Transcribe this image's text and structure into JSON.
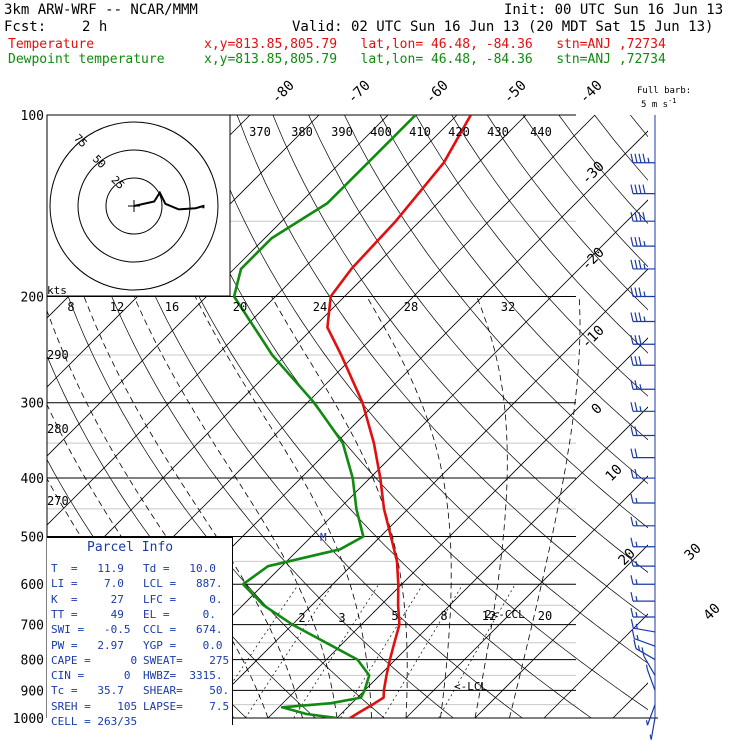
{
  "header": {
    "model": "3km ARW-WRF -- NCAR/MMM",
    "init": "Init: 00 UTC Sun 16 Jun 13",
    "fcst_label": "Fcst:",
    "fcst_value": "2 h",
    "valid": "Valid: 02 UTC Sun 16 Jun 13 (20 MDT Sat 15 Jun 13)",
    "temp_label": "Temperature",
    "dew_label": "Dewpoint temperature",
    "location": "x,y=813.85,805.79   lat,lon= 46.48, -84.36   stn=ANJ ,72734"
  },
  "wind_legend": {
    "line1": "Full barb:",
    "line2": "5 m s"
  },
  "hodograph": {
    "units": "kts",
    "ring_labels": [
      "25",
      "50",
      "75"
    ],
    "trace_kts": [
      [
        0,
        0
      ],
      [
        18,
        4
      ],
      [
        23,
        12
      ],
      [
        28,
        2
      ],
      [
        40,
        -3
      ],
      [
        55,
        -2
      ],
      [
        62,
        0
      ],
      [
        62,
        -2
      ]
    ]
  },
  "parcel_info": {
    "title": "Parcel Info",
    "left": [
      [
        "T  =",
        "11.9"
      ],
      [
        "LI =",
        "7.0"
      ],
      [
        "K  =",
        "27"
      ],
      [
        "TT =",
        "49"
      ],
      [
        "SWI =",
        "-0.5"
      ],
      [
        "PW =",
        "2.97"
      ],
      [
        "CAPE =",
        "0"
      ],
      [
        "CIN =",
        "0"
      ],
      [
        "Tc =",
        "35.7"
      ],
      [
        "SREH =",
        "105"
      ],
      [
        "CELL =",
        "263/35"
      ]
    ],
    "right": [
      [
        "Td =",
        "10.0"
      ],
      [
        "LCL =",
        "887."
      ],
      [
        "LFC =",
        "0."
      ],
      [
        "EL =",
        "0."
      ],
      [
        "CCL =",
        "674."
      ],
      [
        "YGP =",
        "0.0"
      ],
      [
        "SWEAT=",
        "275"
      ],
      [
        "HWBZ=",
        "3315."
      ],
      [
        "SHEAR=",
        "50."
      ],
      [
        "LAPSE=",
        "7.5"
      ]
    ]
  },
  "annotations": {
    "ccl": "CCL",
    "lcl": "LCL",
    "melting": "M"
  },
  "chart_data": {
    "type": "line",
    "ylabel": "",
    "xlabel": "",
    "y_scale": "log-pressure (hPa)",
    "y_ticks": [
      100,
      200,
      300,
      400,
      500,
      600,
      700,
      800,
      900,
      1000
    ],
    "y_range": [
      100,
      1000
    ],
    "x_range_degC": [
      -40,
      40
    ],
    "isotherm_labels": [
      -80,
      -70,
      -60,
      -50,
      -40,
      -30,
      -20,
      -10,
      0,
      10,
      20,
      30,
      40
    ],
    "theta_e_labels": [
      370,
      380,
      390,
      400,
      410,
      420,
      430,
      440
    ],
    "theta_labels": [
      290,
      280,
      270
    ],
    "mixing_ratio_labels_upper": [
      8,
      12,
      16,
      20,
      24,
      28,
      32
    ],
    "mixing_ratio_labels_lower": [
      2,
      3,
      5,
      8,
      12,
      20
    ],
    "series": [
      {
        "name": "Temperature",
        "color": "#e01010",
        "points": [
          [
            1000,
            11.9
          ],
          [
            975,
            12.5
          ],
          [
            950,
            13.2
          ],
          [
            925,
            13.8
          ],
          [
            900,
            12.8
          ],
          [
            850,
            11.0
          ],
          [
            800,
            9.2
          ],
          [
            750,
            7.4
          ],
          [
            700,
            5.5
          ],
          [
            650,
            2.5
          ],
          [
            600,
            -0.5
          ],
          [
            550,
            -4.0
          ],
          [
            500,
            -8.5
          ],
          [
            450,
            -13.5
          ],
          [
            400,
            -18.5
          ],
          [
            350,
            -24.5
          ],
          [
            300,
            -32.0
          ],
          [
            250,
            -42.0
          ],
          [
            225,
            -48.0
          ],
          [
            200,
            -52.0
          ],
          [
            180,
            -53.0
          ],
          [
            150,
            -53.5
          ],
          [
            120,
            -55.0
          ],
          [
            100,
            -58.0
          ]
        ]
      },
      {
        "name": "Dewpoint temperature",
        "color": "#108a10",
        "points": [
          [
            1000,
            10.0
          ],
          [
            985,
            5.0
          ],
          [
            960,
            0.5
          ],
          [
            945,
            7.0
          ],
          [
            925,
            10.5
          ],
          [
            900,
            10.0
          ],
          [
            850,
            8.5
          ],
          [
            800,
            4.5
          ],
          [
            750,
            -2.5
          ],
          [
            700,
            -10.0
          ],
          [
            650,
            -17.0
          ],
          [
            600,
            -23.0
          ],
          [
            560,
            -22.0
          ],
          [
            525,
            -14.0
          ],
          [
            500,
            -12.5
          ],
          [
            450,
            -17.5
          ],
          [
            400,
            -22.5
          ],
          [
            350,
            -29.0
          ],
          [
            300,
            -39.0
          ],
          [
            250,
            -52.0
          ],
          [
            200,
            -66.0
          ],
          [
            180,
            -69.0
          ],
          [
            160,
            -69.0
          ],
          [
            140,
            -66.0
          ],
          [
            125,
            -66.0
          ],
          [
            100,
            -66.0
          ]
        ]
      }
    ],
    "wind_barbs": [
      {
        "p": 120,
        "dir": 270,
        "spd_ms": 45
      },
      {
        "p": 135,
        "dir": 270,
        "spd_ms": 40
      },
      {
        "p": 150,
        "dir": 270,
        "spd_ms": 40
      },
      {
        "p": 165,
        "dir": 270,
        "spd_ms": 35
      },
      {
        "p": 180,
        "dir": 270,
        "spd_ms": 35
      },
      {
        "p": 200,
        "dir": 270,
        "spd_ms": 35
      },
      {
        "p": 220,
        "dir": 270,
        "spd_ms": 35
      },
      {
        "p": 240,
        "dir": 270,
        "spd_ms": 30
      },
      {
        "p": 260,
        "dir": 270,
        "spd_ms": 30
      },
      {
        "p": 285,
        "dir": 270,
        "spd_ms": 25
      },
      {
        "p": 310,
        "dir": 270,
        "spd_ms": 25
      },
      {
        "p": 340,
        "dir": 270,
        "spd_ms": 20
      },
      {
        "p": 370,
        "dir": 270,
        "spd_ms": 20
      },
      {
        "p": 400,
        "dir": 270,
        "spd_ms": 20
      },
      {
        "p": 440,
        "dir": 270,
        "spd_ms": 15
      },
      {
        "p": 480,
        "dir": 270,
        "spd_ms": 15
      },
      {
        "p": 520,
        "dir": 270,
        "spd_ms": 15
      },
      {
        "p": 560,
        "dir": 270,
        "spd_ms": 15
      },
      {
        "p": 600,
        "dir": 270,
        "spd_ms": 15
      },
      {
        "p": 640,
        "dir": 270,
        "spd_ms": 15
      },
      {
        "p": 680,
        "dir": 270,
        "spd_ms": 15
      },
      {
        "p": 720,
        "dir": 280,
        "spd_ms": 15
      },
      {
        "p": 760,
        "dir": 290,
        "spd_ms": 15
      },
      {
        "p": 800,
        "dir": 300,
        "spd_ms": 15
      },
      {
        "p": 850,
        "dir": 330,
        "spd_ms": 10
      },
      {
        "p": 900,
        "dir": 340,
        "spd_ms": 5
      },
      {
        "p": 950,
        "dir": 200,
        "spd_ms": 5
      },
      {
        "p": 1000,
        "dir": 190,
        "spd_ms": 5
      }
    ]
  }
}
